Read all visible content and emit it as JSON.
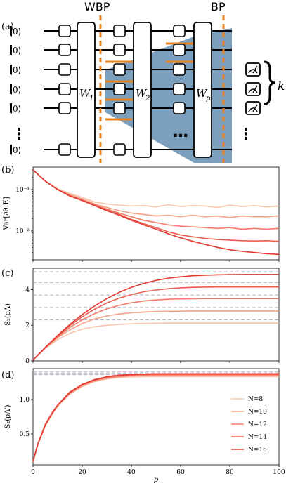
{
  "panel_labels": {
    "a": "(a)",
    "b": "(b)",
    "c": "(c)",
    "d": "(d)"
  },
  "circuit": {
    "wbp_label": "WBP",
    "bp_label": "BP",
    "ket_label": "|0⟩",
    "block_labels": [
      "W",
      "W",
      "W"
    ],
    "block_subscripts": [
      "1",
      "2",
      "p"
    ],
    "k_label": "k",
    "ellipsis": "⋮",
    "h_ellipsis": "…",
    "colors": {
      "dashed": "#e8821e",
      "shade": "#4f7fa6",
      "orange_bar": "#e8821e"
    }
  },
  "chart_data": [
    {
      "type": "line",
      "panel": "b",
      "ylabel": "Var[∂θ₁E]",
      "yscale": "log",
      "ylim": [
        0.002,
        0.35
      ],
      "xlim": [
        0,
        100
      ],
      "yticks": [
        "10⁻¹",
        "10⁻²"
      ],
      "x": [
        0,
        5,
        10,
        15,
        20,
        25,
        30,
        35,
        40,
        45,
        50,
        55,
        60,
        65,
        70,
        75,
        80,
        85,
        90,
        95,
        100
      ],
      "series": [
        {
          "name": "N=8",
          "color": "#f9c3ad",
          "values": [
            0.3,
            0.16,
            0.105,
            0.08,
            0.065,
            0.05,
            0.045,
            0.042,
            0.04,
            0.041,
            0.038,
            0.043,
            0.039,
            0.041,
            0.04,
            0.037,
            0.042,
            0.039,
            0.041,
            0.038,
            0.04
          ]
        },
        {
          "name": "N=10",
          "color": "#f6a088",
          "values": [
            0.3,
            0.16,
            0.1,
            0.075,
            0.06,
            0.045,
            0.037,
            0.031,
            0.027,
            0.025,
            0.023,
            0.024,
            0.022,
            0.024,
            0.022,
            0.023,
            0.021,
            0.023,
            0.022,
            0.022,
            0.023
          ]
        },
        {
          "name": "N=12",
          "color": "#f27e6a",
          "values": [
            0.3,
            0.16,
            0.1,
            0.072,
            0.056,
            0.043,
            0.034,
            0.027,
            0.022,
            0.018,
            0.016,
            0.014,
            0.013,
            0.0125,
            0.012,
            0.0115,
            0.012,
            0.011,
            0.0115,
            0.011,
            0.0115
          ]
        },
        {
          "name": "N=14",
          "color": "#ec5d4e",
          "values": [
            0.3,
            0.16,
            0.1,
            0.07,
            0.055,
            0.042,
            0.032,
            0.025,
            0.019,
            0.015,
            0.012,
            0.0095,
            0.008,
            0.0072,
            0.0066,
            0.0062,
            0.006,
            0.0058,
            0.0057,
            0.0058,
            0.0056
          ]
        },
        {
          "name": "N=16",
          "color": "#e23b32",
          "values": [
            0.3,
            0.16,
            0.1,
            0.07,
            0.054,
            0.041,
            0.031,
            0.024,
            0.018,
            0.014,
            0.011,
            0.0085,
            0.0068,
            0.0056,
            0.0047,
            0.004,
            0.0035,
            0.0032,
            0.003,
            0.0028,
            0.0027
          ]
        }
      ]
    },
    {
      "type": "line",
      "panel": "c",
      "ylabel": "S₂(ρA)",
      "ylim": [
        0,
        5.2
      ],
      "xlim": [
        0,
        100
      ],
      "yticks": [
        "0",
        "2",
        "4"
      ],
      "hlines": [
        2.3,
        3.0,
        3.7,
        4.4,
        5.0
      ],
      "x": [
        0,
        5,
        10,
        15,
        20,
        25,
        30,
        35,
        40,
        45,
        50,
        55,
        60,
        65,
        70,
        75,
        80,
        85,
        90,
        95,
        100
      ],
      "series": [
        {
          "name": "N=8",
          "color": "#f9c3ad",
          "values": [
            0.05,
            0.7,
            1.2,
            1.55,
            1.78,
            1.92,
            2.0,
            2.05,
            2.08,
            2.1,
            2.11,
            2.12,
            2.12,
            2.12,
            2.12,
            2.12,
            2.12,
            2.12,
            2.12,
            2.12,
            2.12
          ]
        },
        {
          "name": "N=10",
          "color": "#f6a088",
          "values": [
            0.05,
            0.72,
            1.3,
            1.75,
            2.1,
            2.35,
            2.52,
            2.63,
            2.7,
            2.74,
            2.77,
            2.78,
            2.79,
            2.8,
            2.8,
            2.8,
            2.8,
            2.8,
            2.8,
            2.8,
            2.8
          ]
        },
        {
          "name": "N=12",
          "color": "#f27e6a",
          "values": [
            0.05,
            0.74,
            1.35,
            1.88,
            2.3,
            2.65,
            2.92,
            3.12,
            3.26,
            3.36,
            3.42,
            3.46,
            3.48,
            3.49,
            3.5,
            3.5,
            3.5,
            3.5,
            3.5,
            3.5,
            3.5
          ]
        },
        {
          "name": "N=14",
          "color": "#ec5d4e",
          "values": [
            0.05,
            0.75,
            1.4,
            1.98,
            2.48,
            2.9,
            3.25,
            3.52,
            3.72,
            3.88,
            3.98,
            4.05,
            4.1,
            4.13,
            4.14,
            4.15,
            4.15,
            4.15,
            4.15,
            4.15,
            4.15
          ]
        },
        {
          "name": "N=16",
          "color": "#e23b32",
          "values": [
            0.05,
            0.76,
            1.43,
            2.05,
            2.6,
            3.08,
            3.5,
            3.85,
            4.13,
            4.35,
            4.52,
            4.64,
            4.72,
            4.78,
            4.81,
            4.83,
            4.84,
            4.85,
            4.85,
            4.85,
            4.85
          ]
        }
      ]
    },
    {
      "type": "line",
      "panel": "d",
      "ylabel": "S₂(ρA′)",
      "xlabel": "p",
      "ylim": [
        0.05,
        1.45
      ],
      "xlim": [
        0,
        100
      ],
      "yticks": [
        "0.5",
        "1.0"
      ],
      "xticks": [
        "0",
        "20",
        "40",
        "60",
        "80",
        "100"
      ],
      "hlines": [
        1.36,
        1.38,
        1.4
      ],
      "x": [
        0,
        2,
        5,
        8,
        10,
        15,
        20,
        25,
        30,
        35,
        40,
        50,
        60,
        70,
        80,
        90,
        100
      ],
      "series": [
        {
          "name": "N=8",
          "color": "#f9c3ad",
          "values": [
            0.1,
            0.35,
            0.62,
            0.8,
            0.9,
            1.08,
            1.19,
            1.26,
            1.3,
            1.32,
            1.33,
            1.335,
            1.335,
            1.335,
            1.335,
            1.335,
            1.335
          ]
        },
        {
          "name": "N=10",
          "color": "#f6a088",
          "values": [
            0.1,
            0.35,
            0.62,
            0.8,
            0.91,
            1.09,
            1.2,
            1.27,
            1.31,
            1.33,
            1.345,
            1.35,
            1.35,
            1.35,
            1.35,
            1.35,
            1.35
          ]
        },
        {
          "name": "N=12",
          "color": "#f27e6a",
          "values": [
            0.1,
            0.35,
            0.63,
            0.81,
            0.91,
            1.1,
            1.21,
            1.28,
            1.32,
            1.34,
            1.355,
            1.36,
            1.36,
            1.36,
            1.36,
            1.36,
            1.36
          ]
        },
        {
          "name": "N=14",
          "color": "#ec5d4e",
          "values": [
            0.1,
            0.36,
            0.63,
            0.81,
            0.92,
            1.1,
            1.22,
            1.29,
            1.33,
            1.35,
            1.36,
            1.37,
            1.37,
            1.37,
            1.37,
            1.37,
            1.37
          ]
        },
        {
          "name": "N=16",
          "color": "#e23b32",
          "values": [
            0.1,
            0.36,
            0.64,
            0.82,
            0.92,
            1.11,
            1.22,
            1.29,
            1.33,
            1.355,
            1.365,
            1.375,
            1.375,
            1.375,
            1.375,
            1.375,
            1.375
          ]
        }
      ],
      "legend": {
        "position": "bottom-right",
        "entries": [
          "N=8",
          "N=10",
          "N=12",
          "N=14",
          "N=16"
        ]
      }
    }
  ]
}
